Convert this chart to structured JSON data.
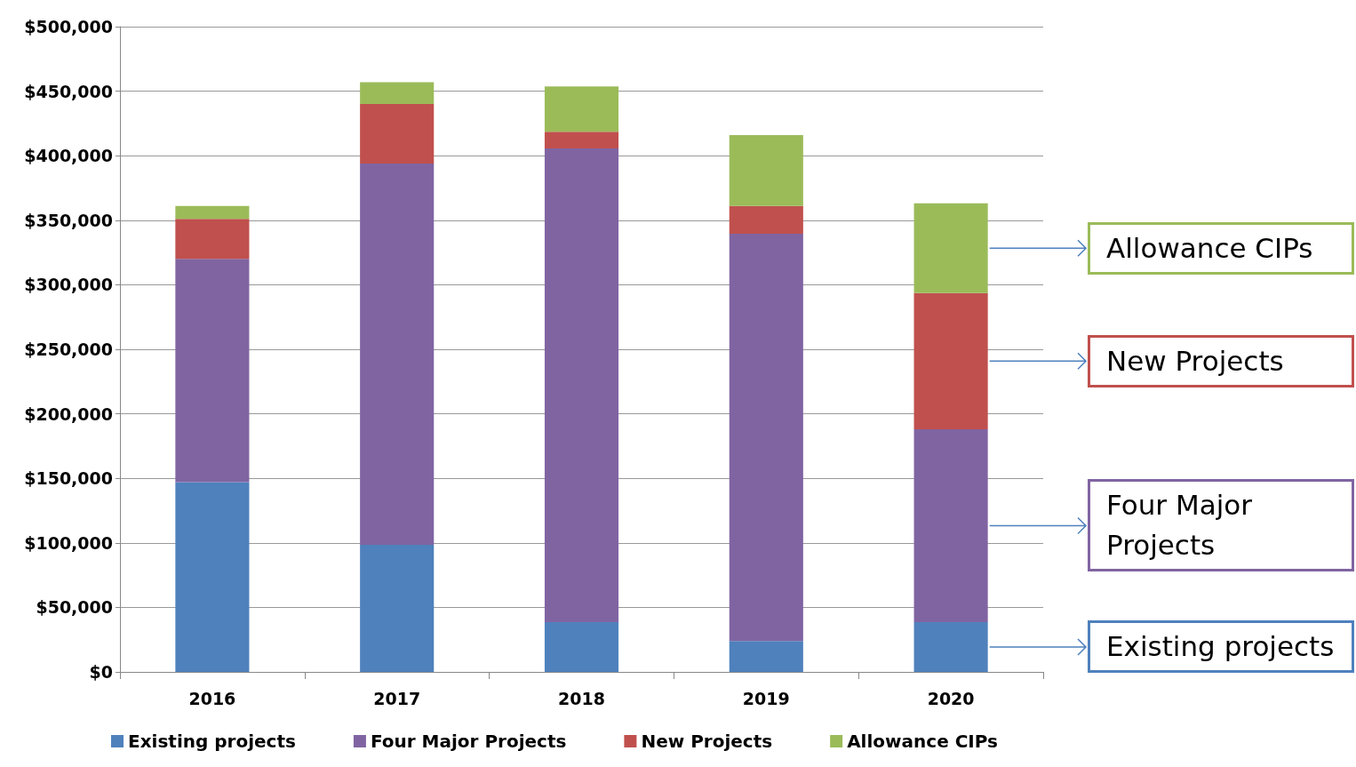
{
  "chart_data": {
    "type": "bar",
    "stacked": true,
    "categories": [
      "2016",
      "2017",
      "2018",
      "2019",
      "2020"
    ],
    "series": [
      {
        "name": "Existing projects",
        "color": "#4f81bd",
        "values": [
          147000,
          98500,
          38600,
          24000,
          38600
        ]
      },
      {
        "name": "Four Major Projects",
        "color": "#8064a2",
        "values": [
          173000,
          295500,
          367000,
          315500,
          149500
        ]
      },
      {
        "name": "New Projects",
        "color": "#c0504d",
        "values": [
          31000,
          46000,
          13000,
          21500,
          105500
        ]
      },
      {
        "name": "Allowance CIPs",
        "color": "#9bbb59",
        "values": [
          10000,
          17000,
          35000,
          55000,
          69500
        ]
      }
    ],
    "ylim": [
      0,
      500000
    ],
    "yticks": [
      {
        "value": 0,
        "label": "$0"
      },
      {
        "value": 50000,
        "label": "$50,000"
      },
      {
        "value": 100000,
        "label": "$100,000"
      },
      {
        "value": 150000,
        "label": "$150,000"
      },
      {
        "value": 200000,
        "label": "$200,000"
      },
      {
        "value": 250000,
        "label": "$250,000"
      },
      {
        "value": 300000,
        "label": "$300,000"
      },
      {
        "value": 350000,
        "label": "$350,000"
      },
      {
        "value": 400000,
        "label": "$400,000"
      },
      {
        "value": 450000,
        "label": "$450,000"
      },
      {
        "value": 500000,
        "label": "$500,000"
      }
    ],
    "grid": "y",
    "legend": "bottom",
    "annotations": [
      "Existing projects",
      "Four Major Projects",
      "New Projects",
      "Allowance CIPs"
    ]
  }
}
